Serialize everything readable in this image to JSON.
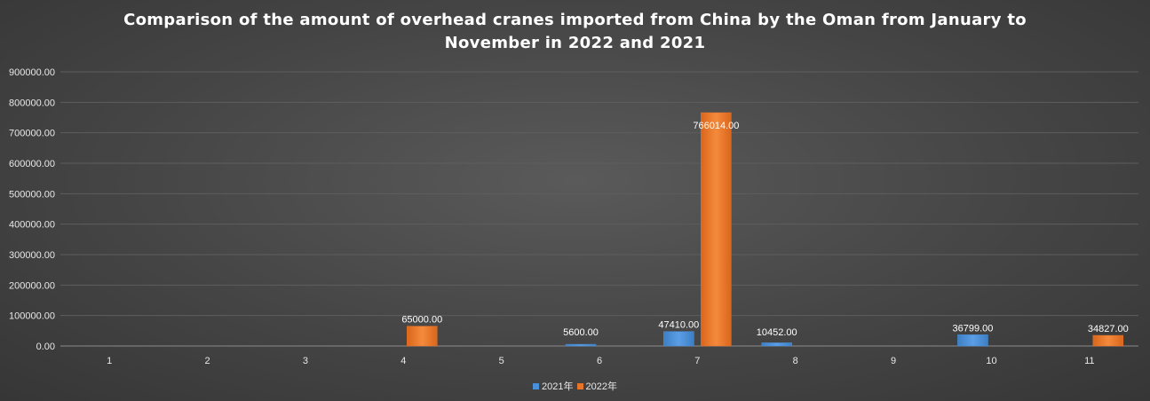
{
  "chart_data": {
    "type": "bar",
    "title_lines": [
      "Comparison of the amount of overhead cranes imported from China by the Oman from January to",
      "November in 2022 and 2021"
    ],
    "categories": [
      "1",
      "2",
      "3",
      "4",
      "5",
      "6",
      "7",
      "8",
      "9",
      "10",
      "11"
    ],
    "series": [
      {
        "name": "2021年",
        "color": "#4a90d9",
        "values": [
          null,
          null,
          null,
          null,
          null,
          5600.0,
          47410.0,
          10452.0,
          null,
          36799.0,
          null
        ],
        "labels": [
          "",
          "",
          "",
          "",
          "",
          "5600.00",
          "47410.00",
          "10452.00",
          "",
          "36799.00",
          ""
        ]
      },
      {
        "name": "2022年",
        "color": "#e8742a",
        "values": [
          null,
          null,
          null,
          65000.0,
          null,
          null,
          766014.0,
          null,
          null,
          null,
          34827.0
        ],
        "labels": [
          "",
          "",
          "",
          "65000.00",
          "",
          "",
          "766014.00",
          "",
          "",
          "",
          "34827.00"
        ]
      }
    ],
    "ylim": [
      0,
      900000
    ],
    "yticks": [
      "0.00",
      "100000.00",
      "200000.00",
      "300000.00",
      "400000.00",
      "500000.00",
      "600000.00",
      "700000.00",
      "800000.00",
      "900000.00"
    ],
    "ytick_values": [
      0,
      100000,
      200000,
      300000,
      400000,
      500000,
      600000,
      700000,
      800000,
      900000
    ],
    "grid": true,
    "legend_position": "bottom"
  }
}
